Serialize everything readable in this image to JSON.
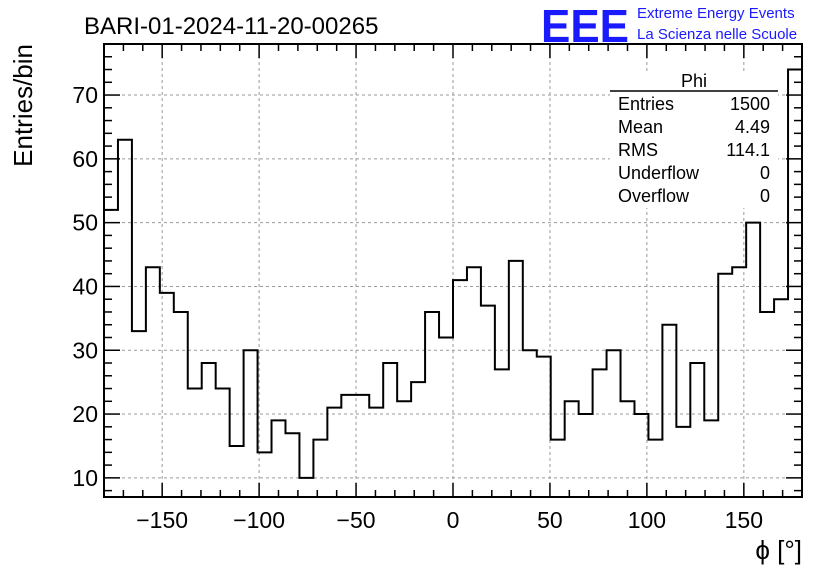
{
  "header": {
    "run_title": "BARI-01-2024-11-20-00265",
    "logo_text": "EEE",
    "logo_line1": "Extreme Energy Events",
    "logo_line2": "La Scienza nelle Scuole",
    "logo_color": "#1a1aff"
  },
  "stats": {
    "title": "Phi",
    "rows": [
      {
        "label": "Entries",
        "value": "1500"
      },
      {
        "label": "Mean",
        "value": "4.49"
      },
      {
        "label": "RMS",
        "value": "114.1"
      },
      {
        "label": "Underflow",
        "value": "0"
      },
      {
        "label": "Overflow",
        "value": "0"
      }
    ]
  },
  "chart_data": {
    "type": "histogram",
    "title": "BARI-01-2024-11-20-00265",
    "xlabel": "ϕ [°]",
    "ylabel": "Entries/bin",
    "xlim": [
      -180,
      180
    ],
    "ylim": [
      7,
      78
    ],
    "xticks": [
      -150,
      -100,
      -50,
      0,
      50,
      100,
      150
    ],
    "yticks": [
      10,
      20,
      30,
      40,
      50,
      60,
      70
    ],
    "grid": true,
    "bin_width": 7.2,
    "values": [
      52,
      63,
      33,
      43,
      39,
      36,
      24,
      28,
      24,
      15,
      30,
      14,
      19,
      17,
      10,
      16,
      21,
      23,
      23,
      21,
      28,
      22,
      25,
      36,
      32,
      41,
      43,
      37,
      27,
      44,
      30,
      29,
      16,
      22,
      20,
      27,
      30,
      22,
      20,
      16,
      34,
      18,
      28,
      19,
      42,
      43,
      50,
      36,
      38,
      74
    ],
    "line_color": "#000000"
  }
}
